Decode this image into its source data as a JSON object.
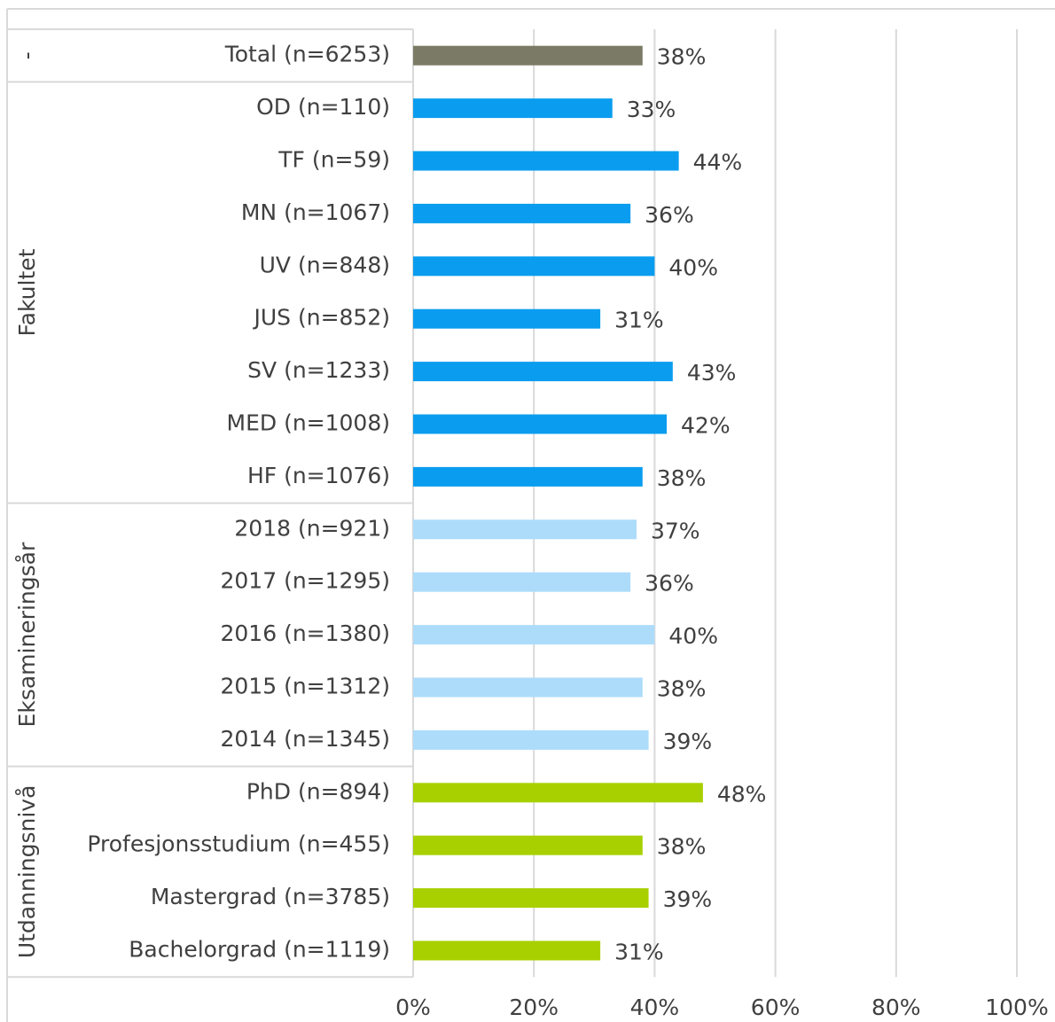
{
  "chart_data": {
    "type": "bar",
    "orientation": "horizontal",
    "groups": [
      {
        "name": "-",
        "color": "#7a7a66",
        "categories": [
          "Total (n=6253)"
        ],
        "values": [
          38
        ],
        "value_labels": [
          "38%"
        ]
      },
      {
        "name": "Fakultet",
        "color": "#0a9def",
        "categories": [
          "OD (n=110)",
          "TF (n=59)",
          "MN (n=1067)",
          "UV (n=848)",
          "JUS (n=852)",
          "SV (n=1233)",
          "MED (n=1008)",
          "HF (n=1076)"
        ],
        "values": [
          33,
          44,
          36,
          40,
          31,
          43,
          42,
          38
        ],
        "value_labels": [
          "33%",
          "44%",
          "36%",
          "40%",
          "31%",
          "43%",
          "42%",
          "38%"
        ]
      },
      {
        "name": "Eksamineringsår",
        "color": "#addcfb",
        "categories": [
          "2018 (n=921)",
          "2017 (n=1295)",
          "2016 (n=1380)",
          "2015 (n=1312)",
          "2014 (n=1345)"
        ],
        "values": [
          37,
          36,
          40,
          38,
          39
        ],
        "value_labels": [
          "37%",
          "36%",
          "40%",
          "38%",
          "39%"
        ]
      },
      {
        "name": "Utdanningsnivå",
        "color": "#a8d000",
        "categories": [
          "PhD (n=894)",
          "Profesjonsstudium (n=455)",
          "Mastergrad (n=3785)",
          "Bachelorgrad (n=1119)"
        ],
        "values": [
          48,
          38,
          39,
          31
        ],
        "value_labels": [
          "48%",
          "38%",
          "39%",
          "31%"
        ]
      }
    ],
    "xlim": [
      0,
      100
    ],
    "xticks": [
      {
        "value": 0,
        "label": "0%"
      },
      {
        "value": 20,
        "label": "20%"
      },
      {
        "value": 40,
        "label": "40%"
      },
      {
        "value": 60,
        "label": "60%"
      },
      {
        "value": 80,
        "label": "80%"
      },
      {
        "value": 100,
        "label": "100%"
      }
    ],
    "grid": true
  }
}
